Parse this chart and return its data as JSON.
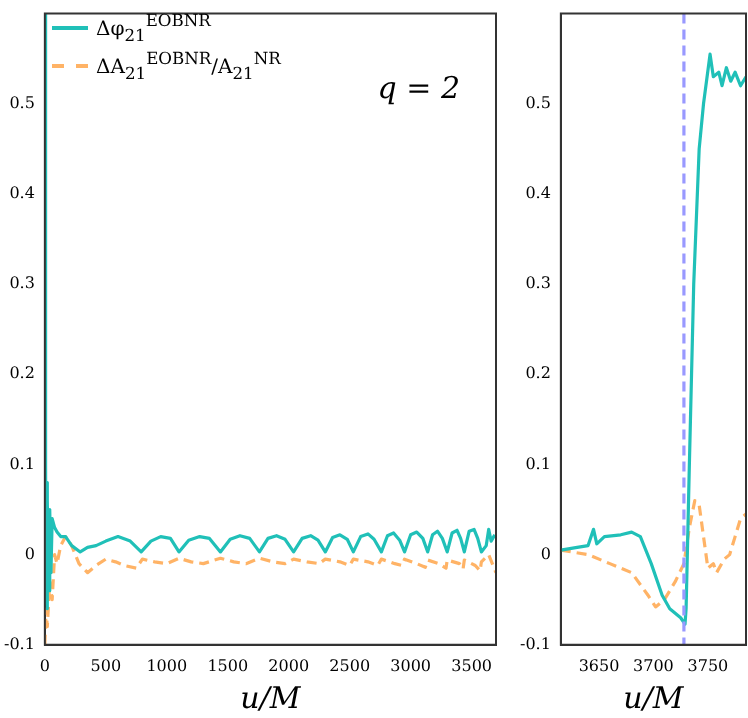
{
  "chart_data": [
    {
      "type": "line",
      "xlabel": "u/M",
      "xlim": [
        0,
        3700
      ],
      "xticks": [
        0,
        500,
        1000,
        1500,
        2000,
        2500,
        3000,
        3500
      ],
      "ylim": [
        -0.1,
        0.6
      ],
      "yticks": [
        -0.1,
        0,
        0.1,
        0.2,
        0.3,
        0.4,
        0.5
      ],
      "legend": "top left",
      "annotations": [
        "q = 2"
      ],
      "series": [
        {
          "name": "Δφ$_{21}$$^{EOBNR}$",
          "color": "#20c0b8",
          "line_style": "solid",
          "x": [
            0,
            6,
            10,
            15,
            20,
            25,
            30,
            40,
            50,
            60,
            80,
            100,
            130,
            170,
            220,
            290,
            350,
            420,
            500,
            600,
            700,
            790,
            870,
            950,
            1030,
            1100,
            1180,
            1270,
            1350,
            1440,
            1520,
            1600,
            1680,
            1760,
            1830,
            1900,
            1970,
            2040,
            2110,
            2180,
            2240,
            2300,
            2360,
            2420,
            2480,
            2530,
            2590,
            2650,
            2700,
            2760,
            2810,
            2860,
            2910,
            2950,
            3000,
            3050,
            3100,
            3140,
            3180,
            3220,
            3260,
            3300,
            3340,
            3380,
            3410,
            3440,
            3480,
            3520,
            3550,
            3580,
            3620,
            3640,
            3660,
            3690
          ],
          "values": [
            0.6,
            0.1,
            -0.05,
            0.08,
            -0.06,
            0.06,
            -0.04,
            0.05,
            -0.02,
            0.04,
            0.03,
            0.025,
            0.02,
            0.02,
            0.01,
            0.003,
            0.008,
            0.01,
            0.015,
            0.02,
            0.015,
            0.003,
            0.015,
            0.02,
            0.018,
            0.003,
            0.016,
            0.02,
            0.018,
            0.003,
            0.017,
            0.021,
            0.018,
            0.003,
            0.018,
            0.021,
            0.017,
            0.003,
            0.018,
            0.021,
            0.016,
            0.003,
            0.019,
            0.022,
            0.017,
            0.003,
            0.02,
            0.023,
            0.017,
            0.003,
            0.021,
            0.024,
            0.016,
            0.003,
            0.022,
            0.025,
            0.018,
            0.003,
            0.022,
            0.026,
            0.018,
            0.003,
            0.024,
            0.027,
            0.018,
            0.003,
            0.026,
            0.028,
            0.018,
            0.003,
            0.01,
            0.028,
            0.015,
            0.022
          ]
        },
        {
          "name": "ΔA$_{21}$$^{EOBNR}$/A$_{21}$$^{NR}$",
          "color": "#ffb366",
          "line_style": "dashed",
          "x": [
            0,
            10,
            20,
            40,
            60,
            80,
            100,
            130,
            170,
            220,
            280,
            350,
            420,
            500,
            580,
            650,
            750,
            800,
            900,
            1000,
            1100,
            1200,
            1300,
            1440,
            1550,
            1650,
            1760,
            1870,
            1970,
            2040,
            2150,
            2250,
            2300,
            2420,
            2500,
            2530,
            2650,
            2730,
            2760,
            2870,
            2930,
            2950,
            3050,
            3120,
            3140,
            3230,
            3290,
            3300,
            3400,
            3430,
            3440,
            3530,
            3570,
            3580,
            3640,
            3700
          ],
          "values": [
            -0.1,
            -0.06,
            -0.08,
            -0.03,
            -0.05,
            0.0,
            -0.01,
            0.01,
            0.02,
            0.01,
            -0.01,
            -0.02,
            -0.012,
            -0.005,
            -0.008,
            -0.012,
            -0.015,
            -0.005,
            -0.008,
            -0.01,
            -0.004,
            -0.008,
            -0.01,
            -0.004,
            -0.008,
            -0.01,
            -0.004,
            -0.008,
            -0.01,
            -0.005,
            -0.008,
            -0.01,
            -0.005,
            -0.008,
            -0.012,
            -0.005,
            -0.008,
            -0.012,
            -0.005,
            -0.01,
            -0.012,
            -0.005,
            -0.01,
            -0.014,
            -0.006,
            -0.01,
            -0.015,
            -0.006,
            -0.01,
            -0.016,
            -0.006,
            -0.012,
            -0.018,
            -0.008,
            0.0,
            -0.02
          ]
        }
      ]
    },
    {
      "type": "line",
      "xlabel": "u/M",
      "xlim": [
        3615,
        3785
      ],
      "xticks": [
        3650,
        3700,
        3750
      ],
      "ylim": [
        -0.1,
        0.6
      ],
      "yticks": [
        -0.1,
        0,
        0.1,
        0.2,
        0.3,
        0.4,
        0.5
      ],
      "ref_lines": [
        {
          "axis": "x",
          "value": 3728,
          "color": "#9999ff",
          "line_style": "dashed"
        }
      ],
      "series": [
        {
          "color": "#20c0b8",
          "line_style": "solid",
          "x": [
            3615,
            3630,
            3640,
            3645,
            3648,
            3655,
            3670,
            3680,
            3688,
            3698,
            3708,
            3715,
            3725,
            3729,
            3730,
            3733,
            3737,
            3742,
            3746,
            3752,
            3755,
            3760,
            3763,
            3767,
            3771,
            3775,
            3780,
            3785
          ],
          "values": [
            0.005,
            0.008,
            0.01,
            0.028,
            0.012,
            0.02,
            0.022,
            0.025,
            0.02,
            -0.01,
            -0.045,
            -0.06,
            -0.07,
            -0.077,
            -0.06,
            0.1,
            0.3,
            0.45,
            0.5,
            0.555,
            0.53,
            0.535,
            0.52,
            0.54,
            0.525,
            0.535,
            0.52,
            0.53
          ]
        },
        {
          "color": "#ffb366",
          "line_style": "dashed",
          "x": [
            3615,
            3640,
            3660,
            3680,
            3695,
            3702,
            3710,
            3720,
            3728,
            3733,
            3738,
            3742,
            3746,
            3750,
            3755,
            3758,
            3765,
            3770,
            3775,
            3780,
            3785
          ],
          "values": [
            0.005,
            0.0,
            -0.01,
            -0.02,
            -0.045,
            -0.058,
            -0.05,
            -0.03,
            -0.01,
            0.03,
            0.06,
            0.055,
            0.02,
            -0.015,
            -0.01,
            -0.02,
            -0.005,
            0.0,
            0.02,
            0.04,
            0.045
          ]
        }
      ]
    }
  ]
}
